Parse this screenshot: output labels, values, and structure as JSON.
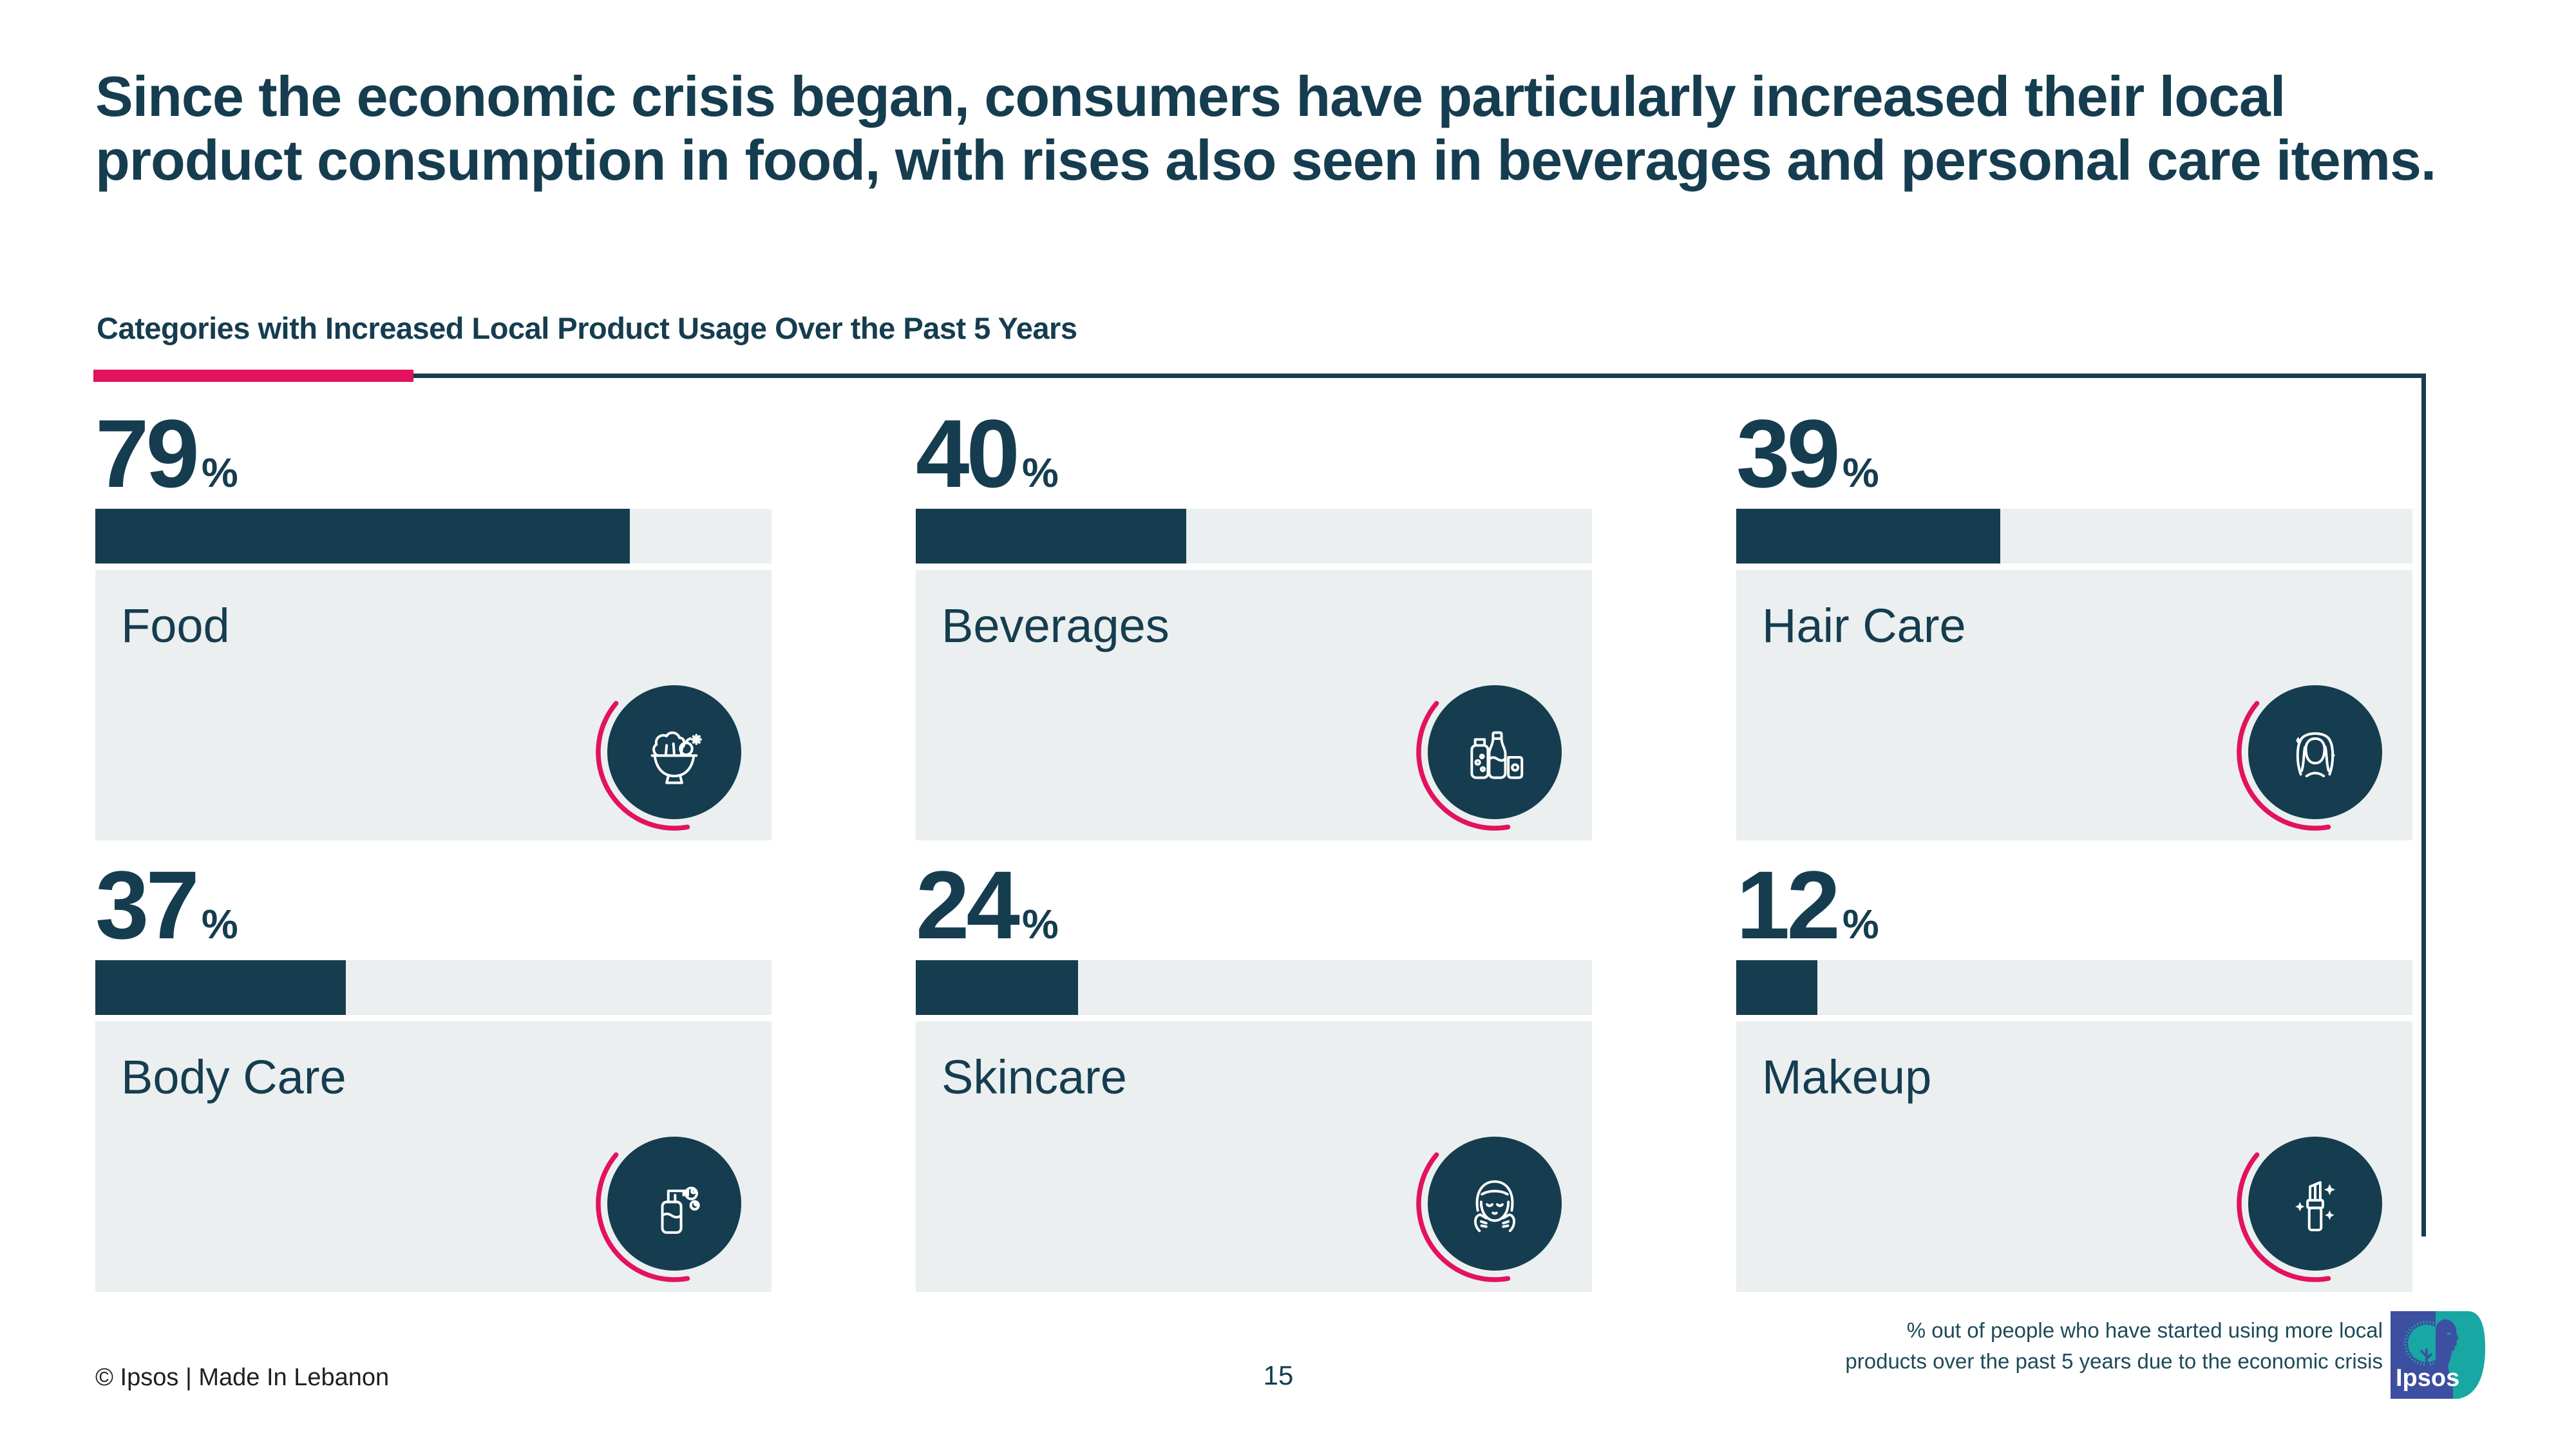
{
  "slide": {
    "title_line1": "Since the economic crisis began, consumers have particularly increased their local",
    "title_line2": "product consumption in food, with rises also seen in beverages and personal care items.",
    "section_title": "Categories with Increased Local Product Usage Over the Past 5 Years",
    "footer": {
      "copyright": "© Ipsos | Made In Lebanon",
      "page_number": "15",
      "note_line1": "% out of people who have started using more local",
      "note_line2": "products over the past 5 years due to the economic crisis",
      "logo_text": "Ipsos"
    }
  },
  "chart_data": {
    "type": "bar",
    "title": "Categories with Increased Local Product Usage Over the Past 5 Years",
    "categories": [
      "Food",
      "Beverages",
      "Hair Care",
      "Body Care",
      "Skincare",
      "Makeup"
    ],
    "values": [
      79,
      40,
      39,
      37,
      24,
      12
    ],
    "unit": "%",
    "ylim": [
      0,
      100
    ],
    "grid": false,
    "legend": "none",
    "note": "% out of people who have started using more local products over the past 5 years due to the economic crisis"
  },
  "cards": [
    {
      "value": "79",
      "unit": "%",
      "percent": 79,
      "label": "Food",
      "icon": "food-bowl-icon",
      "icon_symbol": "icon-food-bowl"
    },
    {
      "value": "40",
      "unit": "%",
      "percent": 40,
      "label": "Beverages",
      "icon": "beverage-bottles-icon",
      "icon_symbol": "icon-beverage-bottles"
    },
    {
      "value": "39",
      "unit": "%",
      "percent": 39,
      "label": "Hair Care",
      "icon": "woman-hair-icon",
      "icon_symbol": "icon-woman-hair"
    },
    {
      "value": "37",
      "unit": "%",
      "percent": 37,
      "label": "Body Care",
      "icon": "pump-bottle-icon",
      "icon_symbol": "icon-pump-bottle"
    },
    {
      "value": "24",
      "unit": "%",
      "percent": 24,
      "label": "Skincare",
      "icon": "face-wash-icon",
      "icon_symbol": "icon-face-wash"
    },
    {
      "value": "12",
      "unit": "%",
      "percent": 12,
      "label": "Makeup",
      "icon": "lipstick-icon",
      "icon_symbol": "icon-lipstick"
    }
  ],
  "colors": {
    "dark": "#153d4f",
    "card": "#ebeff0",
    "pink": "#e3125e",
    "logo_blue": "#3c4fa1",
    "logo_teal": "#18a7a2",
    "footer_text": "#1f1f1f"
  }
}
